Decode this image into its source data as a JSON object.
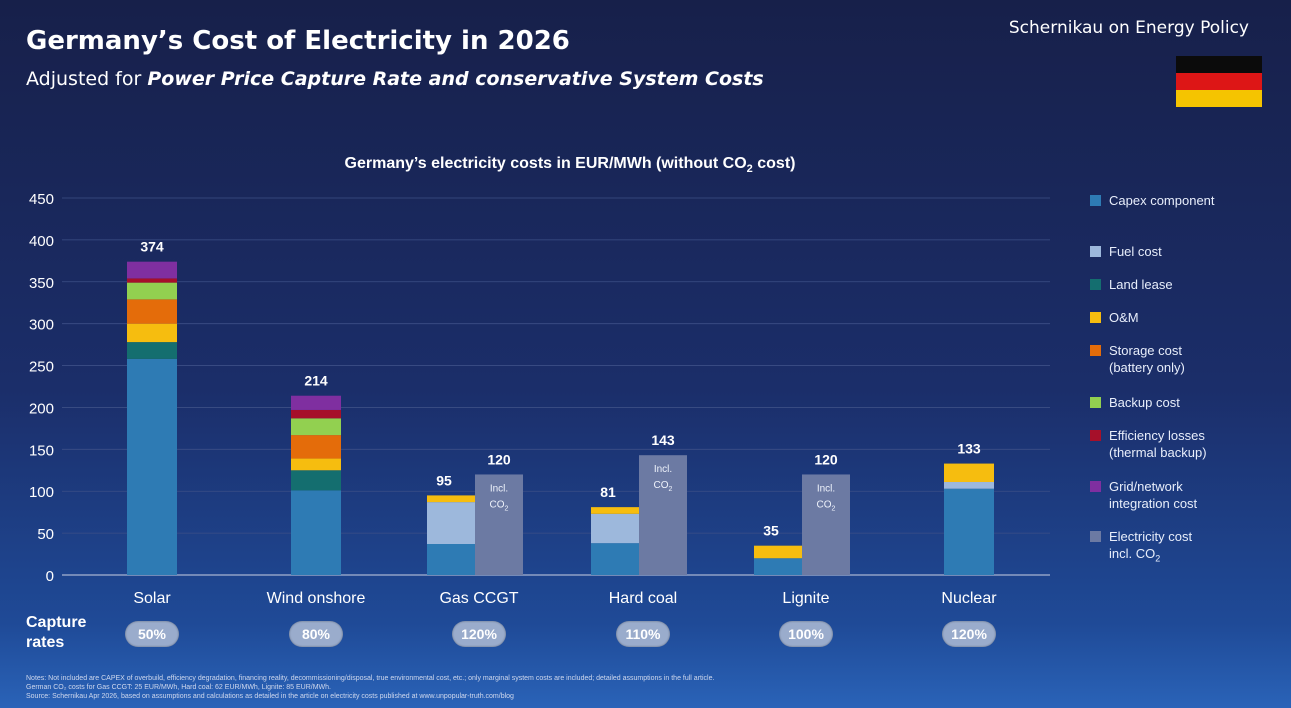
{
  "header": {
    "title": "Germany’s Cost of Electricity in 2026",
    "subtitle_prefix": "Adjusted for ",
    "subtitle_emphasis": "Power Price Capture Rate and conservative System Costs",
    "brand": "Schernikau on Energy Policy"
  },
  "flag_colors": [
    "#0b0b0b",
    "#dd1616",
    "#f5c400"
  ],
  "chart_heading": {
    "text": "Germany’s electricity costs in EUR/MWh (without CO",
    "sub": "2",
    "suffix": " cost)"
  },
  "chart_data": {
    "type": "bar",
    "stacked": true,
    "ylim": [
      0,
      450
    ],
    "yticks": [
      0,
      50,
      100,
      150,
      200,
      250,
      300,
      350,
      400,
      450
    ],
    "grid": true,
    "categories": [
      "Solar",
      "Wind onshore",
      "Gas CCGT",
      "Hard coal",
      "Lignite",
      "Nuclear"
    ],
    "totals": [
      "374",
      "214",
      "95",
      "81",
      "35",
      "133"
    ],
    "series": [
      {
        "name": "Capex component",
        "color": "#2e7bb4",
        "values": [
          258,
          101,
          37,
          38,
          20,
          103
        ]
      },
      {
        "name": "Fuel cost",
        "color": "#9db8dc",
        "values": [
          0,
          0,
          50,
          35,
          0,
          8
        ]
      },
      {
        "name": "Land lease",
        "color": "#146e6f",
        "values": [
          20,
          24,
          0,
          0,
          0,
          0
        ]
      },
      {
        "name": "O&M",
        "color": "#f6bd0f",
        "values": [
          22,
          14,
          8,
          8,
          15,
          22
        ]
      },
      {
        "name": "Storage cost\n(battery only)",
        "color": "#e46c0a",
        "values": [
          29,
          28,
          0,
          0,
          0,
          0
        ]
      },
      {
        "name": "Backup cost",
        "color": "#92d050",
        "values": [
          20,
          20,
          0,
          0,
          0,
          0
        ]
      },
      {
        "name": "Efficiency losses\n(thermal backup)",
        "color": "#a6102a",
        "values": [
          5,
          10,
          0,
          0,
          0,
          0
        ]
      },
      {
        "name": "Grid/network\nintegration cost",
        "color": "#7f2fa0",
        "values": [
          20,
          17,
          0,
          0,
          0,
          0
        ]
      }
    ],
    "co2_series": {
      "name": "Electricity cost\nincl. CO",
      "name_sub": "2",
      "color": "#6c7aa3",
      "values": [
        null,
        null,
        120,
        143,
        120,
        null
      ],
      "totals": [
        "",
        "",
        "120",
        "143",
        "120",
        ""
      ],
      "bar_label": "Incl.",
      "bar_label2": "CO",
      "bar_label2_sub": "2"
    }
  },
  "capture": {
    "label": "Capture\nrates",
    "rates": [
      "50%",
      "80%",
      "120%",
      "110%",
      "100%",
      "120%"
    ]
  },
  "notes": [
    "Notes: Not included are CAPEX of overbuild, efficiency degradation, financing reality, decommissioning/disposal, true environmental cost, etc.; only marginal system costs are included; detailed assumptions in the full article.",
    "German CO₂ costs for Gas CCGT: 25 EUR/MWh, Hard coal: 62 EUR/MWh, Lignite: 85 EUR/MWh.",
    "Source: Schernikau Apr 2026, based on assumptions and calculations as detailed in the article on electricity costs published at www.unpopular-truth.com/blog"
  ]
}
